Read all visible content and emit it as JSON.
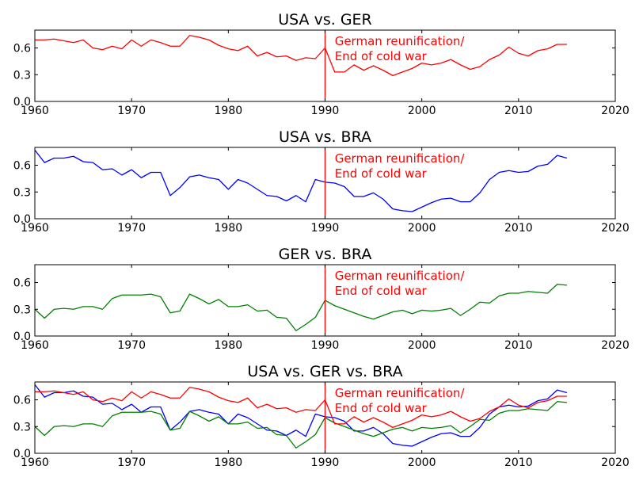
{
  "chart_data": [
    {
      "type": "line",
      "title": "USA vs. GER",
      "xlim": [
        1960,
        2020
      ],
      "ylim": [
        0.0,
        0.8
      ],
      "xticks": [
        "1960",
        "1970",
        "1980",
        "1990",
        "2000",
        "2010",
        "2020"
      ],
      "yticks": [
        "0.0",
        "0.3",
        "0.6"
      ],
      "vline": {
        "x": 1990,
        "color": "#ff0000"
      },
      "annotation": {
        "x": 1991,
        "lines": [
          "German reunification/",
          "End of cold war"
        ]
      },
      "series": [
        {
          "color": "#ff0000",
          "x": [
            1960,
            1961,
            1962,
            1963,
            1964,
            1965,
            1966,
            1967,
            1968,
            1969,
            1970,
            1971,
            1972,
            1973,
            1974,
            1975,
            1976,
            1977,
            1978,
            1979,
            1980,
            1981,
            1982,
            1983,
            1984,
            1985,
            1986,
            1987,
            1988,
            1989,
            1990,
            1991,
            1992,
            1993,
            1994,
            1995,
            1996,
            1997,
            1998,
            1999,
            2000,
            2001,
            2002,
            2003,
            2004,
            2005,
            2006,
            2007,
            2008,
            2009,
            2010,
            2011,
            2012,
            2013,
            2014,
            2015
          ],
          "values": [
            0.69,
            0.69,
            0.7,
            0.68,
            0.66,
            0.69,
            0.6,
            0.58,
            0.62,
            0.59,
            0.69,
            0.62,
            0.69,
            0.66,
            0.62,
            0.62,
            0.74,
            0.72,
            0.69,
            0.63,
            0.59,
            0.57,
            0.62,
            0.51,
            0.55,
            0.5,
            0.51,
            0.46,
            0.49,
            0.48,
            0.6,
            0.33,
            0.33,
            0.41,
            0.35,
            0.4,
            0.35,
            0.29,
            0.33,
            0.37,
            0.43,
            0.41,
            0.43,
            0.47,
            0.41,
            0.36,
            0.39,
            0.47,
            0.52,
            0.61,
            0.54,
            0.51,
            0.57,
            0.59,
            0.64,
            0.64
          ]
        }
      ]
    },
    {
      "type": "line",
      "title": "USA vs. BRA",
      "xlim": [
        1960,
        2020
      ],
      "ylim": [
        0.0,
        0.8
      ],
      "xticks": [
        "1960",
        "1970",
        "1980",
        "1990",
        "2000",
        "2010",
        "2020"
      ],
      "yticks": [
        "0.0",
        "0.3",
        "0.6"
      ],
      "vline": {
        "x": 1990,
        "color": "#ff0000"
      },
      "annotation": {
        "x": 1991,
        "lines": [
          "German reunification/",
          "End of cold war"
        ]
      },
      "series": [
        {
          "color": "#0000ff",
          "x": [
            1960,
            1961,
            1962,
            1963,
            1964,
            1965,
            1966,
            1967,
            1968,
            1969,
            1970,
            1971,
            1972,
            1973,
            1974,
            1975,
            1976,
            1977,
            1978,
            1979,
            1980,
            1981,
            1982,
            1983,
            1984,
            1985,
            1986,
            1987,
            1988,
            1989,
            1990,
            1991,
            1992,
            1993,
            1994,
            1995,
            1996,
            1997,
            1998,
            1999,
            2000,
            2001,
            2002,
            2003,
            2004,
            2005,
            2006,
            2007,
            2008,
            2009,
            2010,
            2011,
            2012,
            2013,
            2014,
            2015
          ],
          "values": [
            0.77,
            0.63,
            0.68,
            0.68,
            0.7,
            0.64,
            0.63,
            0.55,
            0.56,
            0.49,
            0.55,
            0.46,
            0.52,
            0.52,
            0.26,
            0.35,
            0.47,
            0.49,
            0.46,
            0.44,
            0.33,
            0.44,
            0.4,
            0.33,
            0.26,
            0.25,
            0.2,
            0.26,
            0.19,
            0.44,
            0.41,
            0.4,
            0.36,
            0.25,
            0.25,
            0.29,
            0.22,
            0.11,
            0.09,
            0.08,
            0.13,
            0.18,
            0.22,
            0.23,
            0.19,
            0.19,
            0.29,
            0.44,
            0.52,
            0.54,
            0.52,
            0.53,
            0.59,
            0.61,
            0.71,
            0.68
          ]
        }
      ]
    },
    {
      "type": "line",
      "title": "GER vs. BRA",
      "xlim": [
        1960,
        2020
      ],
      "ylim": [
        0.0,
        0.8
      ],
      "xticks": [
        "1960",
        "1970",
        "1980",
        "1990",
        "2000",
        "2010",
        "2020"
      ],
      "yticks": [
        "0.0",
        "0.3",
        "0.6"
      ],
      "vline": {
        "x": 1990,
        "color": "#ff0000"
      },
      "annotation": {
        "x": 1991,
        "lines": [
          "German reunification/",
          "End of cold war"
        ]
      },
      "series": [
        {
          "color": "#008000",
          "x": [
            1960,
            1961,
            1962,
            1963,
            1964,
            1965,
            1966,
            1967,
            1968,
            1969,
            1970,
            1971,
            1972,
            1973,
            1974,
            1975,
            1976,
            1977,
            1978,
            1979,
            1980,
            1981,
            1982,
            1983,
            1984,
            1985,
            1986,
            1987,
            1988,
            1989,
            1990,
            1991,
            1992,
            1993,
            1994,
            1995,
            1996,
            1997,
            1998,
            1999,
            2000,
            2001,
            2002,
            2003,
            2004,
            2005,
            2006,
            2007,
            2008,
            2009,
            2010,
            2011,
            2012,
            2013,
            2014,
            2015
          ],
          "values": [
            0.3,
            0.2,
            0.3,
            0.31,
            0.3,
            0.33,
            0.33,
            0.3,
            0.42,
            0.46,
            0.46,
            0.46,
            0.47,
            0.44,
            0.26,
            0.28,
            0.47,
            0.42,
            0.36,
            0.41,
            0.33,
            0.33,
            0.35,
            0.28,
            0.29,
            0.21,
            0.2,
            0.06,
            0.13,
            0.21,
            0.4,
            0.34,
            0.3,
            0.26,
            0.22,
            0.19,
            0.23,
            0.27,
            0.29,
            0.25,
            0.29,
            0.28,
            0.29,
            0.31,
            0.23,
            0.3,
            0.38,
            0.37,
            0.45,
            0.48,
            0.48,
            0.5,
            0.49,
            0.48,
            0.58,
            0.57
          ]
        }
      ]
    },
    {
      "type": "line",
      "title": "USA vs. GER vs. BRA",
      "xlim": [
        1960,
        2020
      ],
      "ylim": [
        0.0,
        0.8
      ],
      "xticks": [
        "1960",
        "1970",
        "1980",
        "1990",
        "2000",
        "2010",
        "2020"
      ],
      "yticks": [
        "0.0",
        "0.3",
        "0.6"
      ],
      "vline": {
        "x": 1990,
        "color": "#ff0000"
      },
      "annotation": {
        "x": 1991,
        "lines": [
          "German reunification/",
          "End of cold war"
        ]
      },
      "series": [
        {
          "color": "#0000ff",
          "x": [
            1960,
            1961,
            1962,
            1963,
            1964,
            1965,
            1966,
            1967,
            1968,
            1969,
            1970,
            1971,
            1972,
            1973,
            1974,
            1975,
            1976,
            1977,
            1978,
            1979,
            1980,
            1981,
            1982,
            1983,
            1984,
            1985,
            1986,
            1987,
            1988,
            1989,
            1990,
            1991,
            1992,
            1993,
            1994,
            1995,
            1996,
            1997,
            1998,
            1999,
            2000,
            2001,
            2002,
            2003,
            2004,
            2005,
            2006,
            2007,
            2008,
            2009,
            2010,
            2011,
            2012,
            2013,
            2014,
            2015
          ],
          "values": [
            0.77,
            0.63,
            0.68,
            0.68,
            0.7,
            0.64,
            0.63,
            0.55,
            0.56,
            0.49,
            0.55,
            0.46,
            0.52,
            0.52,
            0.26,
            0.35,
            0.47,
            0.49,
            0.46,
            0.44,
            0.33,
            0.44,
            0.4,
            0.33,
            0.26,
            0.25,
            0.2,
            0.26,
            0.19,
            0.44,
            0.41,
            0.4,
            0.36,
            0.25,
            0.25,
            0.29,
            0.22,
            0.11,
            0.09,
            0.08,
            0.13,
            0.18,
            0.22,
            0.23,
            0.19,
            0.19,
            0.29,
            0.44,
            0.52,
            0.54,
            0.52,
            0.53,
            0.59,
            0.61,
            0.71,
            0.68
          ]
        },
        {
          "color": "#008000",
          "x": [
            1960,
            1961,
            1962,
            1963,
            1964,
            1965,
            1966,
            1967,
            1968,
            1969,
            1970,
            1971,
            1972,
            1973,
            1974,
            1975,
            1976,
            1977,
            1978,
            1979,
            1980,
            1981,
            1982,
            1983,
            1984,
            1985,
            1986,
            1987,
            1988,
            1989,
            1990,
            1991,
            1992,
            1993,
            1994,
            1995,
            1996,
            1997,
            1998,
            1999,
            2000,
            2001,
            2002,
            2003,
            2004,
            2005,
            2006,
            2007,
            2008,
            2009,
            2010,
            2011,
            2012,
            2013,
            2014,
            2015
          ],
          "values": [
            0.3,
            0.2,
            0.3,
            0.31,
            0.3,
            0.33,
            0.33,
            0.3,
            0.42,
            0.46,
            0.46,
            0.46,
            0.47,
            0.44,
            0.26,
            0.28,
            0.47,
            0.42,
            0.36,
            0.41,
            0.33,
            0.33,
            0.35,
            0.28,
            0.29,
            0.21,
            0.2,
            0.06,
            0.13,
            0.21,
            0.4,
            0.34,
            0.3,
            0.26,
            0.22,
            0.19,
            0.23,
            0.27,
            0.29,
            0.25,
            0.29,
            0.28,
            0.29,
            0.31,
            0.23,
            0.3,
            0.38,
            0.37,
            0.45,
            0.48,
            0.48,
            0.5,
            0.49,
            0.48,
            0.58,
            0.57
          ]
        },
        {
          "color": "#ff0000",
          "x": [
            1960,
            1961,
            1962,
            1963,
            1964,
            1965,
            1966,
            1967,
            1968,
            1969,
            1970,
            1971,
            1972,
            1973,
            1974,
            1975,
            1976,
            1977,
            1978,
            1979,
            1980,
            1981,
            1982,
            1983,
            1984,
            1985,
            1986,
            1987,
            1988,
            1989,
            1990,
            1991,
            1992,
            1993,
            1994,
            1995,
            1996,
            1997,
            1998,
            1999,
            2000,
            2001,
            2002,
            2003,
            2004,
            2005,
            2006,
            2007,
            2008,
            2009,
            2010,
            2011,
            2012,
            2013,
            2014,
            2015
          ],
          "values": [
            0.69,
            0.69,
            0.7,
            0.68,
            0.66,
            0.69,
            0.6,
            0.58,
            0.62,
            0.59,
            0.69,
            0.62,
            0.69,
            0.66,
            0.62,
            0.62,
            0.74,
            0.72,
            0.69,
            0.63,
            0.59,
            0.57,
            0.62,
            0.51,
            0.55,
            0.5,
            0.51,
            0.46,
            0.49,
            0.48,
            0.6,
            0.33,
            0.33,
            0.41,
            0.35,
            0.4,
            0.35,
            0.29,
            0.33,
            0.37,
            0.43,
            0.41,
            0.43,
            0.47,
            0.41,
            0.36,
            0.39,
            0.47,
            0.52,
            0.61,
            0.54,
            0.51,
            0.57,
            0.59,
            0.64,
            0.64
          ]
        }
      ]
    }
  ]
}
